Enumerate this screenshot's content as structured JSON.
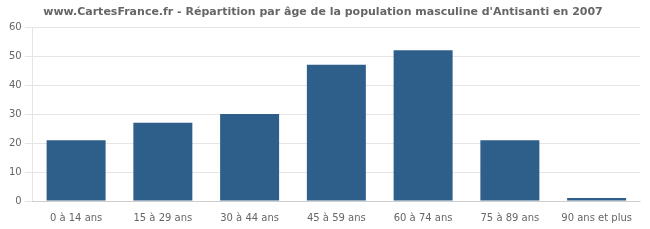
{
  "chart_data": {
    "type": "bar",
    "title": "www.CartesFrance.fr - Répartition par âge de la population masculine d'Antisanti en 2007",
    "categories": [
      "0 à 14 ans",
      "15 à 29 ans",
      "30 à 44 ans",
      "45 à 59 ans",
      "60 à 74 ans",
      "75 à 89 ans",
      "90 ans et plus"
    ],
    "values": [
      21,
      27,
      30,
      47,
      52,
      21,
      1
    ],
    "color": "#2e5f8a",
    "ylim": [
      0,
      60
    ],
    "yticks": [
      0,
      10,
      20,
      30,
      40,
      50,
      60
    ],
    "grid": true
  }
}
